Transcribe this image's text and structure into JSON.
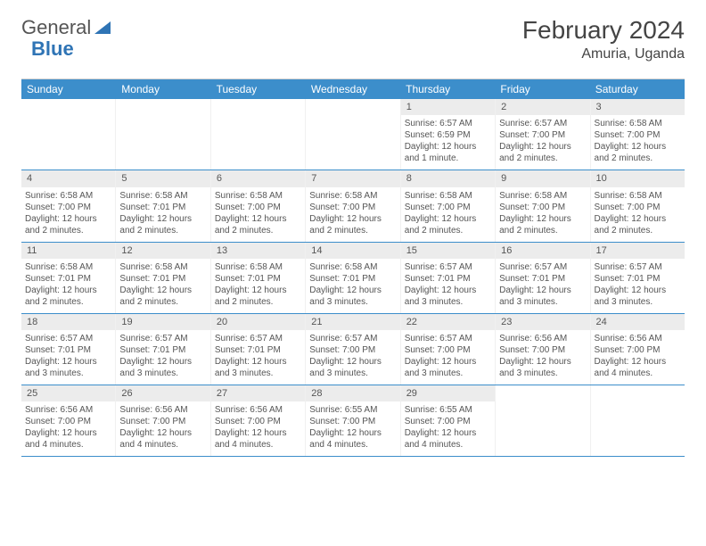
{
  "logo": {
    "text1": "General",
    "text2": "Blue"
  },
  "title": "February 2024",
  "location": "Amuria, Uganda",
  "day_headers": [
    "Sunday",
    "Monday",
    "Tuesday",
    "Wednesday",
    "Thursday",
    "Friday",
    "Saturday"
  ],
  "colors": {
    "header_bg": "#3c8ecb",
    "header_text": "#ffffff",
    "daynum_bg": "#ececec",
    "week_border": "#3c8ecb",
    "text": "#555555",
    "logo_blue": "#2f74b5"
  },
  "weeks": [
    [
      {
        "n": "",
        "sr": "",
        "ss": "",
        "dl": ""
      },
      {
        "n": "",
        "sr": "",
        "ss": "",
        "dl": ""
      },
      {
        "n": "",
        "sr": "",
        "ss": "",
        "dl": ""
      },
      {
        "n": "",
        "sr": "",
        "ss": "",
        "dl": ""
      },
      {
        "n": "1",
        "sr": "6:57 AM",
        "ss": "6:59 PM",
        "dl": "12 hours and 1 minute."
      },
      {
        "n": "2",
        "sr": "6:57 AM",
        "ss": "7:00 PM",
        "dl": "12 hours and 2 minutes."
      },
      {
        "n": "3",
        "sr": "6:58 AM",
        "ss": "7:00 PM",
        "dl": "12 hours and 2 minutes."
      }
    ],
    [
      {
        "n": "4",
        "sr": "6:58 AM",
        "ss": "7:00 PM",
        "dl": "12 hours and 2 minutes."
      },
      {
        "n": "5",
        "sr": "6:58 AM",
        "ss": "7:01 PM",
        "dl": "12 hours and 2 minutes."
      },
      {
        "n": "6",
        "sr": "6:58 AM",
        "ss": "7:00 PM",
        "dl": "12 hours and 2 minutes."
      },
      {
        "n": "7",
        "sr": "6:58 AM",
        "ss": "7:00 PM",
        "dl": "12 hours and 2 minutes."
      },
      {
        "n": "8",
        "sr": "6:58 AM",
        "ss": "7:00 PM",
        "dl": "12 hours and 2 minutes."
      },
      {
        "n": "9",
        "sr": "6:58 AM",
        "ss": "7:00 PM",
        "dl": "12 hours and 2 minutes."
      },
      {
        "n": "10",
        "sr": "6:58 AM",
        "ss": "7:00 PM",
        "dl": "12 hours and 2 minutes."
      }
    ],
    [
      {
        "n": "11",
        "sr": "6:58 AM",
        "ss": "7:01 PM",
        "dl": "12 hours and 2 minutes."
      },
      {
        "n": "12",
        "sr": "6:58 AM",
        "ss": "7:01 PM",
        "dl": "12 hours and 2 minutes."
      },
      {
        "n": "13",
        "sr": "6:58 AM",
        "ss": "7:01 PM",
        "dl": "12 hours and 2 minutes."
      },
      {
        "n": "14",
        "sr": "6:58 AM",
        "ss": "7:01 PM",
        "dl": "12 hours and 3 minutes."
      },
      {
        "n": "15",
        "sr": "6:57 AM",
        "ss": "7:01 PM",
        "dl": "12 hours and 3 minutes."
      },
      {
        "n": "16",
        "sr": "6:57 AM",
        "ss": "7:01 PM",
        "dl": "12 hours and 3 minutes."
      },
      {
        "n": "17",
        "sr": "6:57 AM",
        "ss": "7:01 PM",
        "dl": "12 hours and 3 minutes."
      }
    ],
    [
      {
        "n": "18",
        "sr": "6:57 AM",
        "ss": "7:01 PM",
        "dl": "12 hours and 3 minutes."
      },
      {
        "n": "19",
        "sr": "6:57 AM",
        "ss": "7:01 PM",
        "dl": "12 hours and 3 minutes."
      },
      {
        "n": "20",
        "sr": "6:57 AM",
        "ss": "7:01 PM",
        "dl": "12 hours and 3 minutes."
      },
      {
        "n": "21",
        "sr": "6:57 AM",
        "ss": "7:00 PM",
        "dl": "12 hours and 3 minutes."
      },
      {
        "n": "22",
        "sr": "6:57 AM",
        "ss": "7:00 PM",
        "dl": "12 hours and 3 minutes."
      },
      {
        "n": "23",
        "sr": "6:56 AM",
        "ss": "7:00 PM",
        "dl": "12 hours and 3 minutes."
      },
      {
        "n": "24",
        "sr": "6:56 AM",
        "ss": "7:00 PM",
        "dl": "12 hours and 4 minutes."
      }
    ],
    [
      {
        "n": "25",
        "sr": "6:56 AM",
        "ss": "7:00 PM",
        "dl": "12 hours and 4 minutes."
      },
      {
        "n": "26",
        "sr": "6:56 AM",
        "ss": "7:00 PM",
        "dl": "12 hours and 4 minutes."
      },
      {
        "n": "27",
        "sr": "6:56 AM",
        "ss": "7:00 PM",
        "dl": "12 hours and 4 minutes."
      },
      {
        "n": "28",
        "sr": "6:55 AM",
        "ss": "7:00 PM",
        "dl": "12 hours and 4 minutes."
      },
      {
        "n": "29",
        "sr": "6:55 AM",
        "ss": "7:00 PM",
        "dl": "12 hours and 4 minutes."
      },
      {
        "n": "",
        "sr": "",
        "ss": "",
        "dl": ""
      },
      {
        "n": "",
        "sr": "",
        "ss": "",
        "dl": ""
      }
    ]
  ],
  "labels": {
    "sunrise": "Sunrise: ",
    "sunset": "Sunset: ",
    "daylight": "Daylight: "
  }
}
